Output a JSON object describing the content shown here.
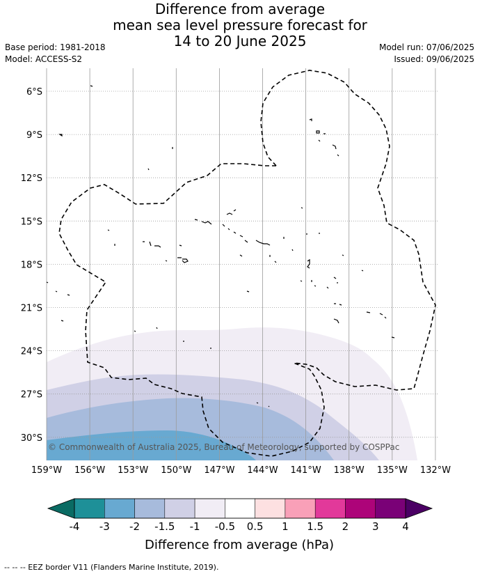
{
  "title": {
    "line1": "Difference from average",
    "line2": "mean sea level pressure forecast for",
    "line3": "14 to 20 June 2025"
  },
  "meta": {
    "base_period": "Base period: 1981-2018",
    "model": "Model: ACCESS-S2",
    "model_run": "Model run: 07/06/2025",
    "issued": "Issued: 09/06/2025"
  },
  "map": {
    "lat_labels": [
      "6°S",
      "9°S",
      "12°S",
      "15°S",
      "18°S",
      "21°S",
      "24°S",
      "27°S",
      "30°S"
    ],
    "lon_labels": [
      "159°W",
      "156°W",
      "153°W",
      "150°W",
      "147°W",
      "144°W",
      "141°W",
      "138°W",
      "135°W",
      "132°W"
    ],
    "copyright": "© Commonwealth of Australia 2025, Bureau of Meteorology, supported by COSPPac"
  },
  "colorbar": {
    "tick_labels": [
      "-4",
      "-3",
      "-2",
      "-1.5",
      "-1",
      "-0.5",
      "0.5",
      "1",
      "1.5",
      "2",
      "3",
      "4"
    ],
    "label": "Difference from average (hPa)",
    "colors": [
      "#1e9098",
      "#68a9d1",
      "#a7bbdc",
      "#d0d0e6",
      "#f1edf5",
      "#ffffff",
      "#fde0e1",
      "#f9a0b8",
      "#e2399a",
      "#ad0479",
      "#7a0177"
    ],
    "under_color": "#0a6b63",
    "over_color": "#4b0064"
  },
  "footnote": "--  --  -- EEZ border V11 (Flanders Marine Institute, 2019)."
}
